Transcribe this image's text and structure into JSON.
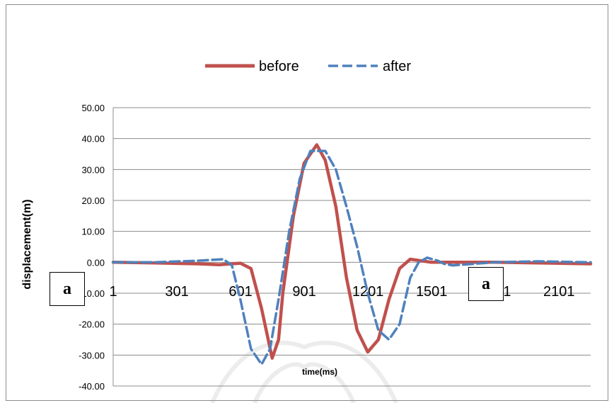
{
  "chart_data": {
    "type": "line",
    "xlabel": "time(ms)",
    "ylabel": "displacement(m)",
    "ylim": [
      -40,
      50
    ],
    "xlim": [
      1,
      2250
    ],
    "y_ticks": [
      -40,
      -30,
      -20,
      -10,
      0,
      10,
      20,
      30,
      40,
      50
    ],
    "y_tick_labels": [
      "-40.00",
      "-30.00",
      "-20.00",
      "-10.00",
      "0.00",
      "10.00",
      "20.00",
      "30.00",
      "40.00",
      "50.00"
    ],
    "x_ticks": [
      1,
      301,
      601,
      901,
      1201,
      1501,
      1801,
      2101
    ],
    "x_tick_labels": [
      "1",
      "301",
      "601",
      "901",
      "1201",
      "1501",
      "1801",
      "2101"
    ],
    "grid": "horizontal",
    "legend": "top-center",
    "series": [
      {
        "name": "before",
        "color": "#c0504d",
        "style": "solid",
        "x": [
          1,
          200,
          400,
          500,
          600,
          650,
          700,
          750,
          780,
          800,
          850,
          900,
          960,
          1000,
          1050,
          1100,
          1150,
          1200,
          1250,
          1300,
          1350,
          1400,
          1450,
          1500,
          1600,
          1800,
          2000,
          2250
        ],
        "y": [
          0,
          -0.2,
          -0.5,
          -0.8,
          -0.3,
          -2,
          -15,
          -31,
          -25,
          -10,
          15,
          32,
          38,
          33,
          18,
          -5,
          -22,
          -29,
          -25,
          -12,
          -2,
          1,
          0.5,
          0,
          0,
          0,
          -0.2,
          -0.5
        ]
      },
      {
        "name": "after",
        "color": "#4f81bd",
        "style": "dashed",
        "x": [
          1,
          200,
          400,
          520,
          560,
          600,
          650,
          700,
          740,
          780,
          830,
          880,
          930,
          1000,
          1050,
          1100,
          1150,
          1200,
          1250,
          1300,
          1350,
          1400,
          1440,
          1480,
          1530,
          1560,
          1600,
          1800,
          2000,
          2250
        ],
        "y": [
          0,
          0,
          0.5,
          1,
          -1,
          -12,
          -28,
          -33,
          -28,
          -12,
          10,
          27,
          36,
          36,
          30,
          18,
          5,
          -10,
          -22,
          -25,
          -20,
          -5,
          0,
          1.5,
          0.5,
          -0.5,
          -1,
          0,
          0.3,
          0
        ]
      }
    ]
  },
  "overlays": {
    "box_left": "a",
    "box_right": "a"
  }
}
